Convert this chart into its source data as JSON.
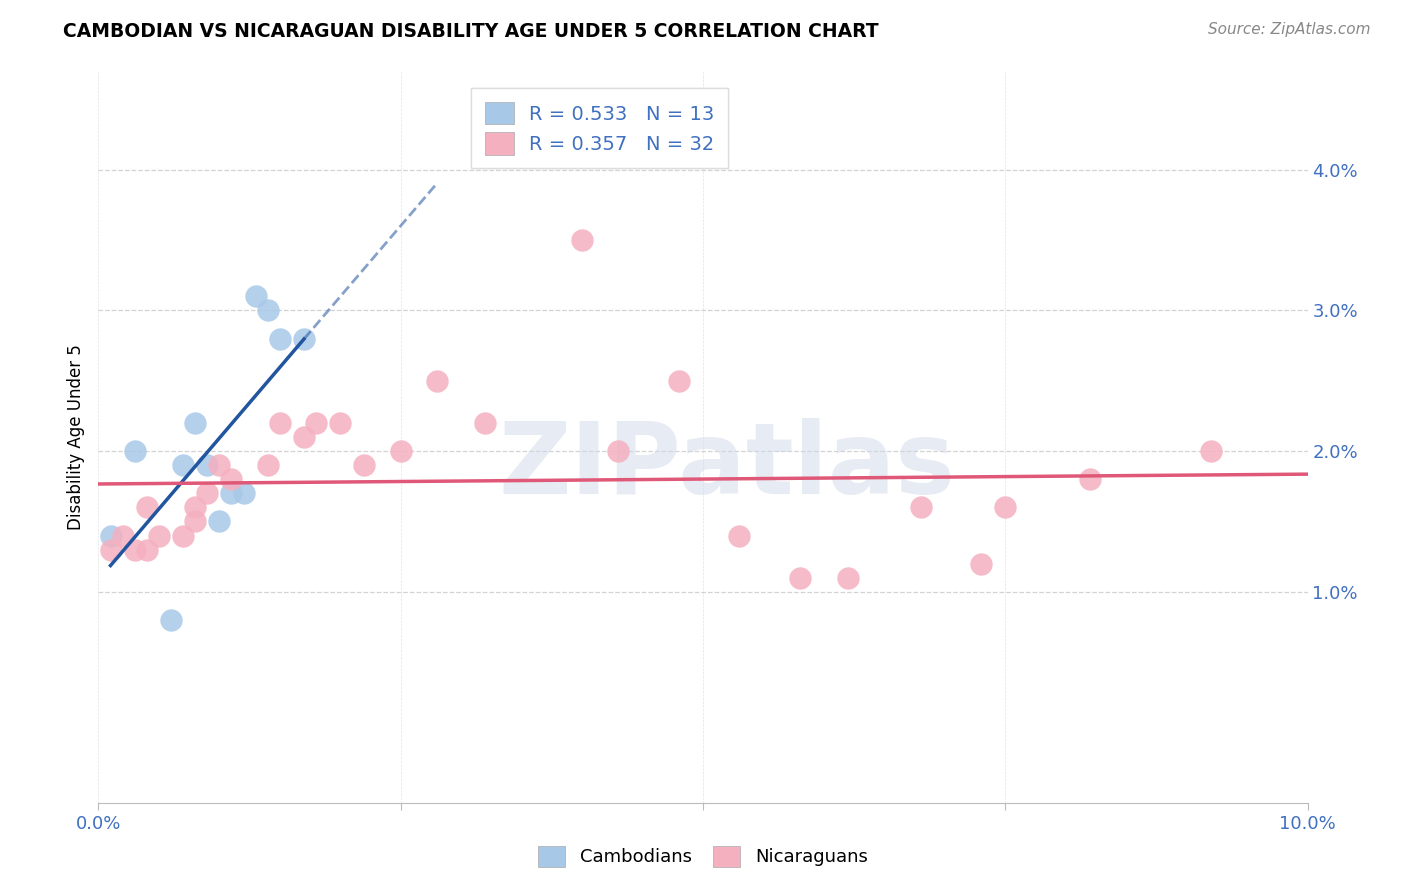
{
  "title": "CAMBODIAN VS NICARAGUAN DISABILITY AGE UNDER 5 CORRELATION CHART",
  "source": "Source: ZipAtlas.com",
  "ylabel": "Disability Age Under 5",
  "xlim": [
    0.0,
    0.1
  ],
  "ylim": [
    -0.005,
    0.047
  ],
  "yticks": [
    0.01,
    0.02,
    0.03,
    0.04
  ],
  "ytick_labels": [
    "1.0%",
    "2.0%",
    "3.0%",
    "4.0%"
  ],
  "xtick_positions": [
    0.0,
    0.025,
    0.05,
    0.075,
    0.1
  ],
  "xtick_labels": [
    "0.0%",
    "",
    "",
    "",
    "10.0%"
  ],
  "cambodian_color": "#a8c8e8",
  "nicaraguan_color": "#f5b0c0",
  "trendline_cambodian_color": "#2255a0",
  "trendline_nicaraguan_color": "#e05878",
  "r_cambodian": 0.533,
  "n_cambodian": 13,
  "r_nicaraguan": 0.357,
  "n_nicaraguan": 32,
  "legend_color": "#4070c0",
  "watermark": "ZIPatlas",
  "background_color": "#ffffff",
  "grid_color": "#c8c8c8",
  "cambodian_x": [
    0.003,
    0.007,
    0.008,
    0.009,
    0.01,
    0.011,
    0.012,
    0.013,
    0.014,
    0.015,
    0.017,
    0.001,
    0.006
  ],
  "cambodian_y": [
    0.02,
    0.019,
    0.022,
    0.019,
    0.015,
    0.017,
    0.017,
    0.031,
    0.03,
    0.028,
    0.028,
    0.014,
    0.008
  ],
  "nicaraguan_x": [
    0.001,
    0.002,
    0.003,
    0.004,
    0.004,
    0.005,
    0.007,
    0.008,
    0.008,
    0.009,
    0.01,
    0.011,
    0.014,
    0.015,
    0.017,
    0.018,
    0.02,
    0.022,
    0.025,
    0.028,
    0.032,
    0.04,
    0.043,
    0.048,
    0.053,
    0.058,
    0.062,
    0.068,
    0.073,
    0.075,
    0.082,
    0.092
  ],
  "nicaraguan_y": [
    0.013,
    0.014,
    0.013,
    0.013,
    0.016,
    0.014,
    0.014,
    0.015,
    0.016,
    0.017,
    0.019,
    0.018,
    0.019,
    0.022,
    0.021,
    0.022,
    0.022,
    0.019,
    0.02,
    0.025,
    0.022,
    0.035,
    0.02,
    0.025,
    0.014,
    0.011,
    0.011,
    0.016,
    0.012,
    0.016,
    0.018,
    0.02
  ]
}
